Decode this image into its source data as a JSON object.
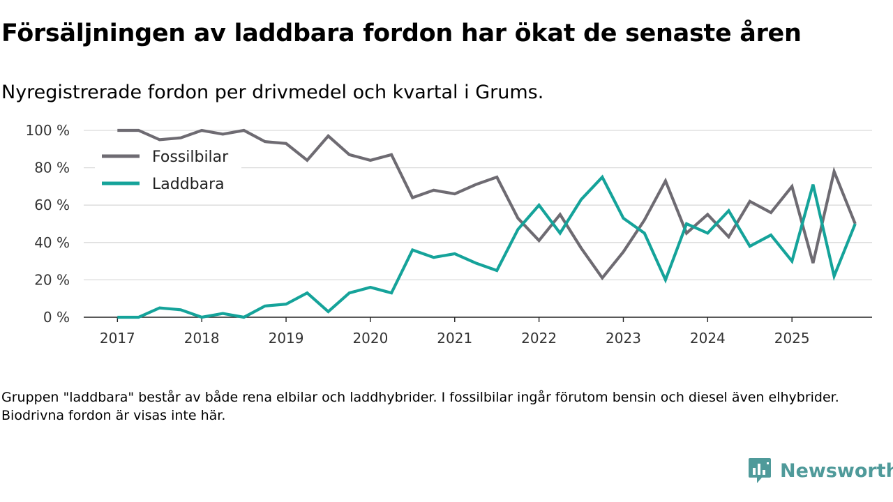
{
  "title": "Försäljningen av laddbara fordon har ökat de senaste åren",
  "subtitle": "Nyregistrerade fordon per drivmedel och kvartal i Grums.",
  "footnote": "Gruppen \"laddbara\" består av både rena elbilar och laddhybrider. I fossilbilar ingår förutom bensin och diesel även elhybrider. Biodrivna fordon är visas inte här.",
  "brand": {
    "name": "Newsworthy",
    "icon": "newsworthy-logo-icon"
  },
  "colors": {
    "fossil": "#6e6b72",
    "laddbara": "#15a39a",
    "grid": "#d9d9d9",
    "axis": "#222222",
    "brand": "#4f9a9a"
  },
  "chart_data": {
    "type": "line",
    "x": [
      2017.0,
      2017.25,
      2017.5,
      2017.75,
      2018.0,
      2018.25,
      2018.5,
      2018.75,
      2019.0,
      2019.25,
      2019.5,
      2019.75,
      2020.0,
      2020.25,
      2020.5,
      2020.75,
      2021.0,
      2021.25,
      2021.5,
      2021.75,
      2022.0,
      2022.25,
      2022.5,
      2022.75,
      2023.0,
      2023.25,
      2023.5,
      2023.75,
      2024.0,
      2024.25,
      2024.5,
      2024.75,
      2025.0,
      2025.25,
      2025.5,
      2025.75
    ],
    "series": [
      {
        "name": "Fossilbilar",
        "color": "#6e6b72",
        "values": [
          100,
          100,
          95,
          96,
          100,
          98,
          100,
          94,
          93,
          84,
          97,
          87,
          84,
          87,
          64,
          68,
          66,
          71,
          75,
          53,
          41,
          55,
          37,
          21,
          35,
          52,
          73,
          45,
          55,
          43,
          62,
          56,
          70,
          29,
          78,
          50
        ]
      },
      {
        "name": "Laddbara",
        "color": "#15a39a",
        "values": [
          0,
          0,
          5,
          4,
          0,
          2,
          0,
          6,
          7,
          13,
          3,
          13,
          16,
          13,
          36,
          32,
          34,
          29,
          25,
          47,
          60,
          45,
          63,
          75,
          53,
          45,
          20,
          50,
          45,
          57,
          38,
          44,
          30,
          71,
          22,
          50
        ]
      }
    ],
    "x_ticks": [
      2017,
      2018,
      2019,
      2020,
      2021,
      2022,
      2023,
      2024,
      2025
    ],
    "x_tick_labels": [
      "2017",
      "2018",
      "2019",
      "2020",
      "2021",
      "2022",
      "2023",
      "2024",
      "2025"
    ],
    "y_ticks": [
      0,
      20,
      40,
      60,
      80,
      100
    ],
    "y_tick_labels": [
      "0 %",
      "20 %",
      "40 %",
      "60 %",
      "80 %",
      "100 %"
    ],
    "xlim": [
      2016.6,
      2025.95
    ],
    "ylim": [
      0,
      100
    ],
    "grid": true,
    "legend": "top-left",
    "xlabel": "",
    "ylabel": ""
  }
}
